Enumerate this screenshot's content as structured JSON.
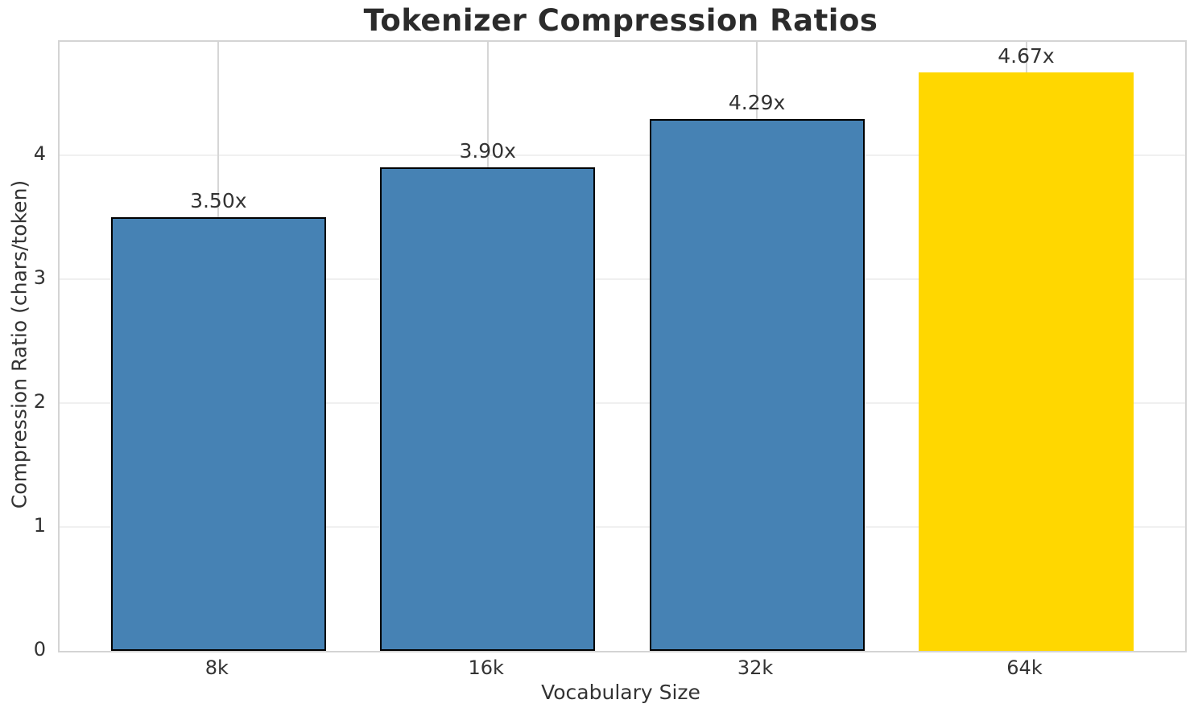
{
  "chart_data": {
    "type": "bar",
    "title": "Tokenizer Compression Ratios",
    "xlabel": "Vocabulary Size",
    "ylabel": "Compression Ratio (chars/token)",
    "categories": [
      "8k",
      "16k",
      "32k",
      "64k"
    ],
    "values": [
      3.5,
      3.9,
      4.29,
      4.67
    ],
    "bar_labels": [
      "3.50x",
      "3.90x",
      "4.29x",
      "4.67x"
    ],
    "yticks": [
      0,
      1,
      2,
      3,
      4
    ],
    "ylim": [
      0,
      4.91
    ],
    "grid": true,
    "legend_position": "none",
    "colors": {
      "bar": "#4682B4",
      "highlight_bar": "#FFD700",
      "bar_edge": "#000000",
      "vgrid": "#d6d6d6",
      "hgrid": "#f0f0f0",
      "spine": "#d4d4d4",
      "title_text": "#2b2b2b",
      "label_text": "#333333"
    },
    "bar_colors": [
      "#4682B4",
      "#4682B4",
      "#4682B4",
      "#FFD700"
    ],
    "bar_has_edge": [
      true,
      true,
      true,
      false
    ],
    "highlight_index": 3
  }
}
